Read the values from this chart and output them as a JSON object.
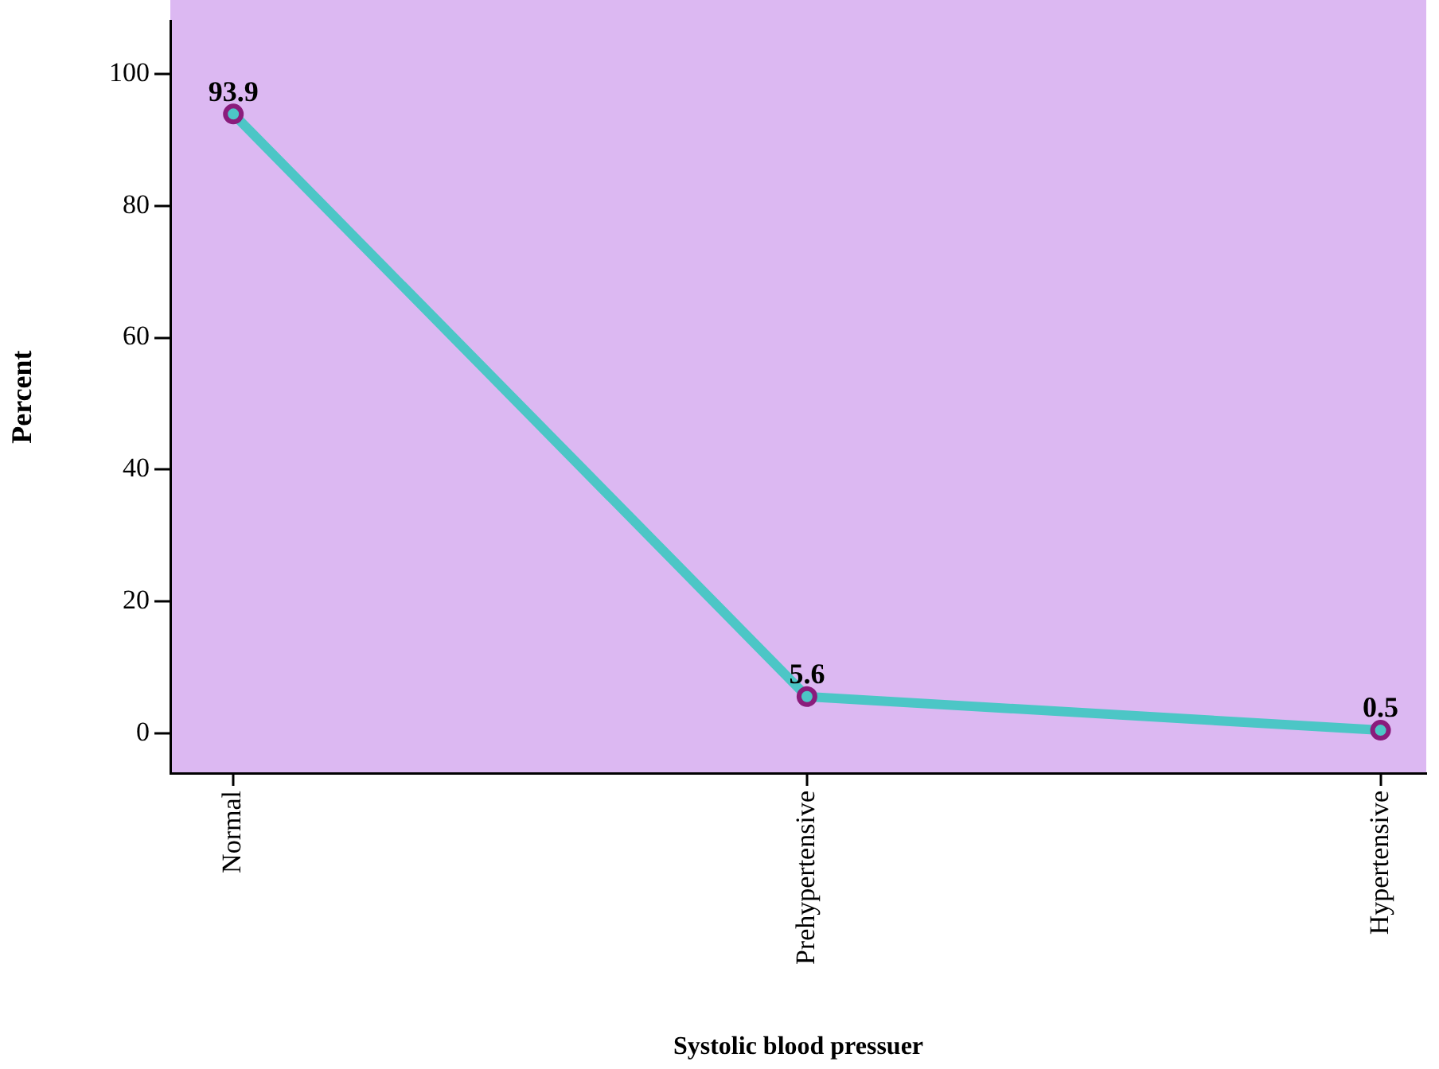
{
  "chart_data": {
    "type": "line",
    "xlabel": "Systolic blood pressuer",
    "ylabel": "Percent",
    "categories": [
      "Normal",
      "Prehypertensive",
      "Hypertensive"
    ],
    "series": [
      {
        "color": "#4cc6c6",
        "values": [
          93.9,
          5.6,
          0.5
        ]
      }
    ],
    "ylim": [
      -6,
      108
    ],
    "yticks": [
      0,
      20,
      40,
      60,
      80,
      100
    ],
    "grid": false,
    "legend": false,
    "marker": "circle",
    "line_style": "solid",
    "data_labels": true
  }
}
